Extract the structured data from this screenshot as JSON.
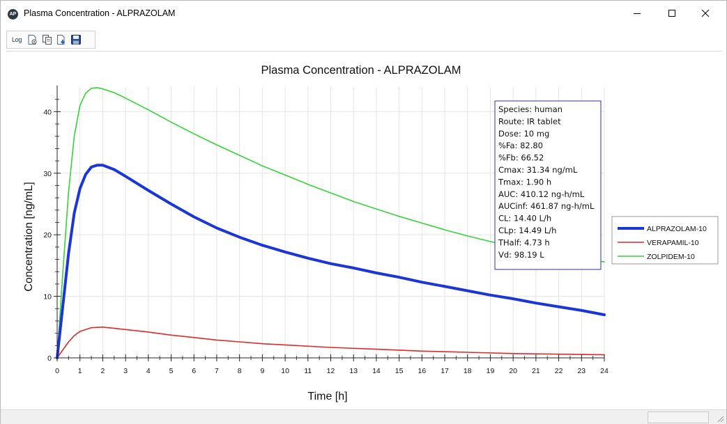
{
  "window": {
    "title": "Plasma Concentration - ALPRAZOLAM",
    "app_icon_text": "AP"
  },
  "toolbar": {
    "log_label": "Log",
    "icons": [
      "page-settings-icon",
      "copy-icon",
      "export-icon",
      "save-icon"
    ]
  },
  "colors": {
    "alprazolam": "#1a35d8",
    "verapamil": "#e02828",
    "zolpidem": "#35d335",
    "info_border": "#3030a0"
  },
  "chart_data": {
    "type": "line",
    "title": "Plasma Concentration - ALPRAZOLAM",
    "xlabel": "Time [h]",
    "ylabel": "Concentration [ng/mL]",
    "xlim": [
      0,
      24
    ],
    "ylim": [
      0,
      44
    ],
    "x_ticks": [
      0,
      1,
      2,
      3,
      4,
      5,
      6,
      7,
      8,
      9,
      10,
      11,
      12,
      13,
      14,
      15,
      16,
      17,
      18,
      19,
      20,
      21,
      22,
      23,
      24
    ],
    "y_ticks": [
      0,
      10,
      20,
      30,
      40
    ],
    "grid": true,
    "legend_position": "right",
    "series": [
      {
        "name": "ALPRAZOLAM-10",
        "color": "#1a35d8",
        "width": 4,
        "x": [
          0,
          0.25,
          0.5,
          0.75,
          1,
          1.25,
          1.5,
          1.75,
          2,
          2.5,
          3,
          4,
          5,
          6,
          7,
          8,
          9,
          10,
          11,
          12,
          13,
          14,
          15,
          16,
          17,
          18,
          19,
          20,
          21,
          22,
          23,
          24
        ],
        "y": [
          0,
          8.5,
          17,
          23.5,
          27.5,
          29.8,
          31.0,
          31.3,
          31.3,
          30.6,
          29.5,
          27.2,
          25.0,
          22.9,
          21.1,
          19.6,
          18.3,
          17.2,
          16.2,
          15.3,
          14.6,
          13.8,
          13.1,
          12.3,
          11.6,
          10.9,
          10.2,
          9.6,
          8.9,
          8.3,
          7.7,
          7.0
        ]
      },
      {
        "name": "VERAPAMIL-10",
        "color": "#e02828",
        "width": 1.6,
        "x": [
          0,
          0.25,
          0.5,
          0.75,
          1,
          1.5,
          2,
          2.5,
          3,
          4,
          5,
          6,
          7,
          8,
          9,
          10,
          12,
          14,
          16,
          18,
          20,
          22,
          24
        ],
        "y": [
          0,
          1.3,
          2.6,
          3.6,
          4.3,
          4.9,
          5.0,
          4.8,
          4.6,
          4.2,
          3.7,
          3.3,
          2.9,
          2.6,
          2.3,
          2.1,
          1.7,
          1.4,
          1.1,
          0.9,
          0.7,
          0.6,
          0.5
        ]
      },
      {
        "name": "ZOLPIDEM-10",
        "color": "#35d335",
        "width": 1.6,
        "x": [
          0,
          0.25,
          0.5,
          0.75,
          1,
          1.25,
          1.5,
          1.75,
          2,
          2.5,
          3,
          4,
          5,
          6,
          7,
          8,
          9,
          10,
          11,
          12,
          13,
          14,
          15,
          16,
          17,
          18,
          19,
          20,
          21,
          22,
          23,
          24
        ],
        "y": [
          0,
          14,
          27,
          36,
          41,
          43,
          43.8,
          43.9,
          43.7,
          43.1,
          42.2,
          40.3,
          38.3,
          36.4,
          34.6,
          32.9,
          31.2,
          29.7,
          28.2,
          26.8,
          25.4,
          24.2,
          23.0,
          21.9,
          20.8,
          19.8,
          18.9,
          18.0,
          17.2,
          16.5,
          16.0,
          15.6
        ]
      }
    ],
    "info_box": [
      "Species: human",
      "Route: IR tablet",
      "Dose: 10 mg",
      "%Fa: 82.80",
      "%Fb: 66.52",
      "Cmax: 31.34 ng/mL",
      "Tmax: 1.90 h",
      "AUC: 410.12 ng-h/mL",
      "AUCinf: 461.87 ng-h/mL",
      "CL: 14.40 L/h",
      "CLp: 14.49 L/h",
      "THalf: 4.73 h",
      "Vd: 98.19 L"
    ]
  }
}
